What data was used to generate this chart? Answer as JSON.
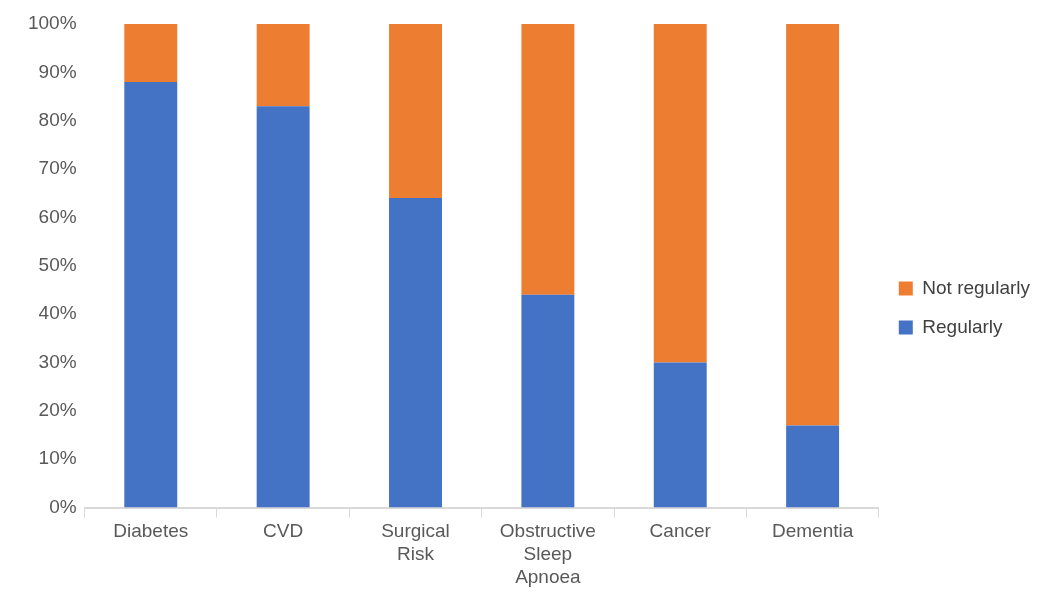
{
  "chart_data": {
    "type": "bar",
    "stacked": true,
    "categories": [
      "Diabetes",
      "CVD",
      "Surgical Risk",
      "Obstructive Sleep Apnoea",
      "Cancer",
      "Dementia"
    ],
    "series": [
      {
        "name": "Regularly",
        "color": "#4472c4",
        "values": [
          88,
          83,
          64,
          44,
          30,
          17
        ]
      },
      {
        "name": "Not regularly",
        "color": "#ed7d31",
        "values": [
          12,
          17,
          36,
          56,
          70,
          83
        ]
      }
    ],
    "ylim": [
      0,
      100
    ],
    "yticks": [
      {
        "value": 0,
        "label": "0%"
      },
      {
        "value": 10,
        "label": "10%"
      },
      {
        "value": 20,
        "label": "20%"
      },
      {
        "value": 30,
        "label": "30%"
      },
      {
        "value": 40,
        "label": "40%"
      },
      {
        "value": 50,
        "label": "50%"
      },
      {
        "value": 60,
        "label": "60%"
      },
      {
        "value": 70,
        "label": "70%"
      },
      {
        "value": 80,
        "label": "80%"
      },
      {
        "value": 90,
        "label": "90%"
      },
      {
        "value": 100,
        "label": "100%"
      }
    ],
    "grid": false,
    "legend": "right"
  }
}
